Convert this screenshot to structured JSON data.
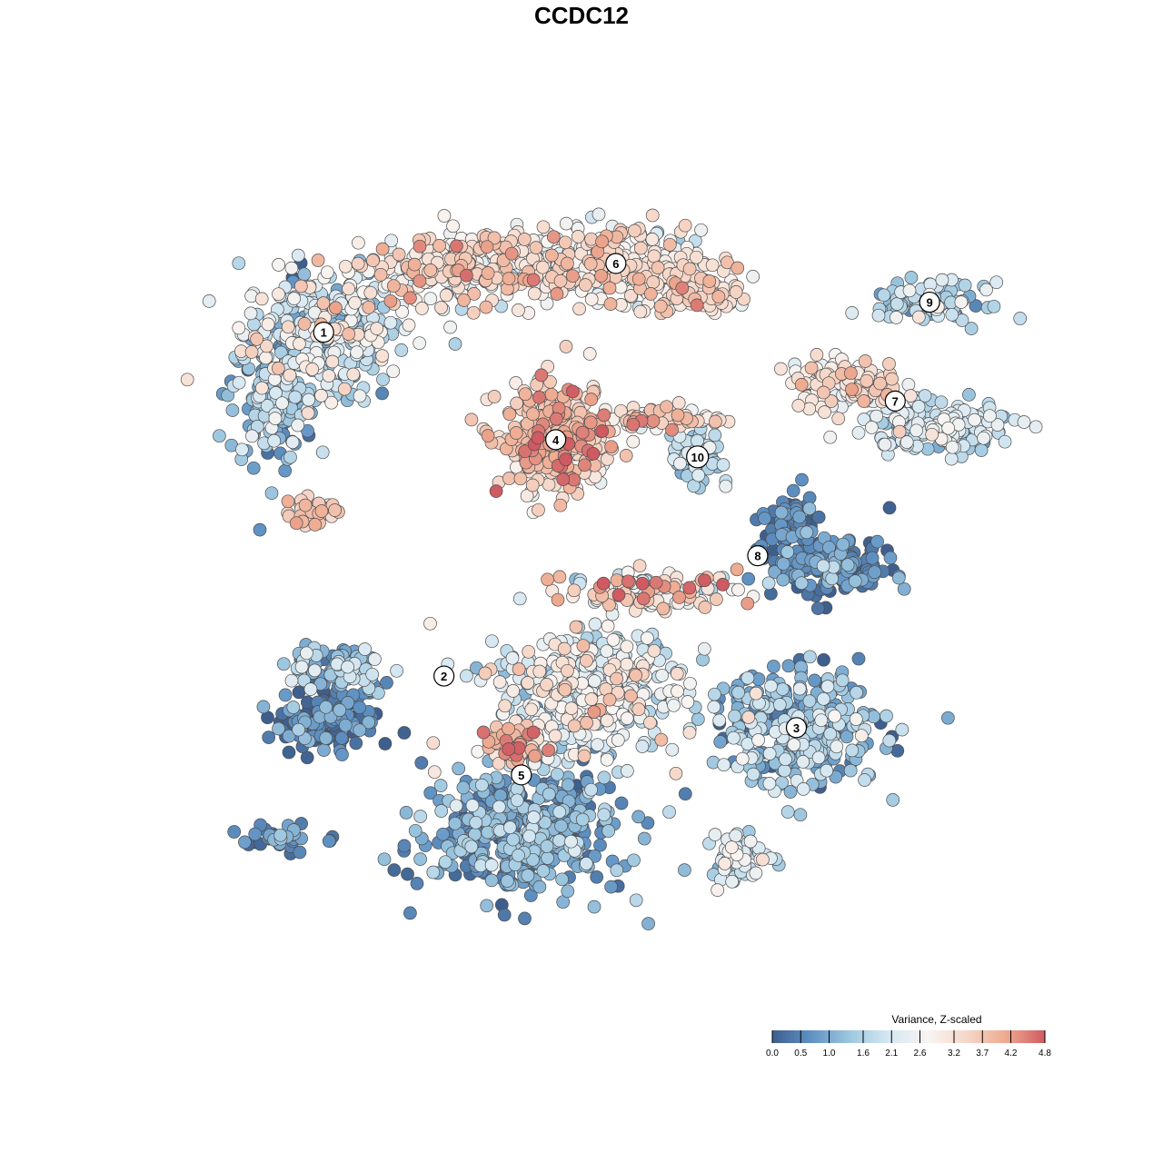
{
  "title": "CCDC12",
  "chart_data": {
    "type": "scatter",
    "title": "CCDC12",
    "xlabel": "",
    "ylabel": "",
    "grid": false,
    "color_scale": {
      "title": "Variance, Z-scaled",
      "min": 0.0,
      "max": 4.8,
      "ticks": [
        0.0,
        0.5,
        1.0,
        1.6,
        2.1,
        2.6,
        3.2,
        3.7,
        4.2,
        4.8
      ],
      "tick_labels": [
        "0.0",
        "0.5",
        "1.0",
        "1.6",
        "2.1",
        "2.6",
        "3.2",
        "3.7",
        "4.2",
        "4.8"
      ],
      "colors": [
        "#3e5f8e",
        "#5f92c4",
        "#9ec8e0",
        "#d6e8f2",
        "#f8f4f1",
        "#f6d7c8",
        "#eeaa90",
        "#cf5a62"
      ]
    },
    "legend_position": "bottom-right",
    "clusters": [
      {
        "label": "1",
        "x": -6.0,
        "y": 5.8,
        "mean_value": 2.0
      },
      {
        "label": "2",
        "x": -3.2,
        "y": -2.2,
        "mean_value": 0.9
      },
      {
        "label": "3",
        "x": 5.0,
        "y": -3.4,
        "mean_value": 1.4
      },
      {
        "label": "4",
        "x": -0.6,
        "y": 3.3,
        "mean_value": 3.5
      },
      {
        "label": "5",
        "x": -1.4,
        "y": -4.5,
        "mean_value": 1.0
      },
      {
        "label": "6",
        "x": 0.8,
        "y": 7.4,
        "mean_value": 2.9
      },
      {
        "label": "7",
        "x": 7.3,
        "y": 4.2,
        "mean_value": 2.3
      },
      {
        "label": "8",
        "x": 4.1,
        "y": 0.6,
        "mean_value": 0.5
      },
      {
        "label": "9",
        "x": 8.1,
        "y": 6.5,
        "mean_value": 1.6
      },
      {
        "label": "10",
        "x": 2.7,
        "y": 2.9,
        "mean_value": 1.6
      }
    ],
    "xlim": [
      -12,
      12
    ],
    "ylim": [
      -12,
      12
    ]
  }
}
